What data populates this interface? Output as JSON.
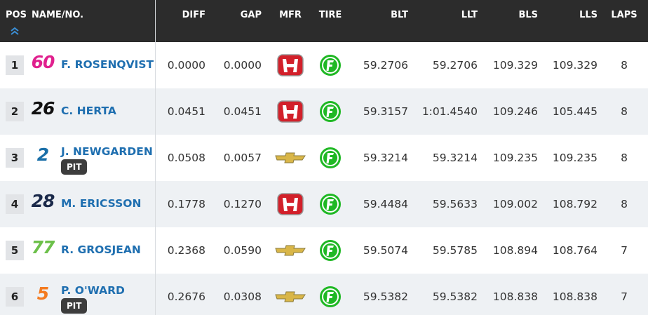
{
  "header": {
    "columns": [
      "POS",
      "NAME/NO.",
      "DIFF",
      "GAP",
      "MFR",
      "TIRE",
      "BLT",
      "LLT",
      "BLS",
      "LLS",
      "LAPS"
    ]
  },
  "table": {
    "rows": [
      {
        "pos": "1",
        "number": "60",
        "name": "F. ROSENQVIST",
        "diff": "0.0000",
        "gap": "0.0000",
        "blt": "59.2706",
        "llt": "59.2706",
        "bls": "109.329",
        "lls": "109.329",
        "laps": "8"
      },
      {
        "pos": "2",
        "number": "26",
        "name": "C. HERTA",
        "diff": "0.0451",
        "gap": "0.0451",
        "blt": "59.3157",
        "llt": "1:01.4540",
        "bls": "109.246",
        "lls": "105.445",
        "laps": "8"
      },
      {
        "pos": "3",
        "number": "2",
        "name": "J. NEWGARDEN",
        "status": "PIT",
        "diff": "0.0508",
        "gap": "0.0057",
        "blt": "59.3214",
        "llt": "59.3214",
        "bls": "109.235",
        "lls": "109.235",
        "laps": "8"
      },
      {
        "pos": "4",
        "number": "28",
        "name": "M. ERICSSON",
        "diff": "0.1778",
        "gap": "0.1270",
        "blt": "59.4484",
        "llt": "59.5633",
        "bls": "109.002",
        "lls": "108.792",
        "laps": "8"
      },
      {
        "pos": "5",
        "number": "77",
        "name": "R. GROSJEAN",
        "diff": "0.2368",
        "gap": "0.0590",
        "blt": "59.5074",
        "llt": "59.5785",
        "bls": "108.894",
        "lls": "108.764",
        "laps": "7"
      },
      {
        "pos": "6",
        "number": "5",
        "name": "P. O'WARD",
        "status": "PIT",
        "diff": "0.2676",
        "gap": "0.0308",
        "blt": "59.5382",
        "llt": "59.5382",
        "bls": "108.838",
        "lls": "108.838",
        "laps": "7"
      }
    ]
  }
}
